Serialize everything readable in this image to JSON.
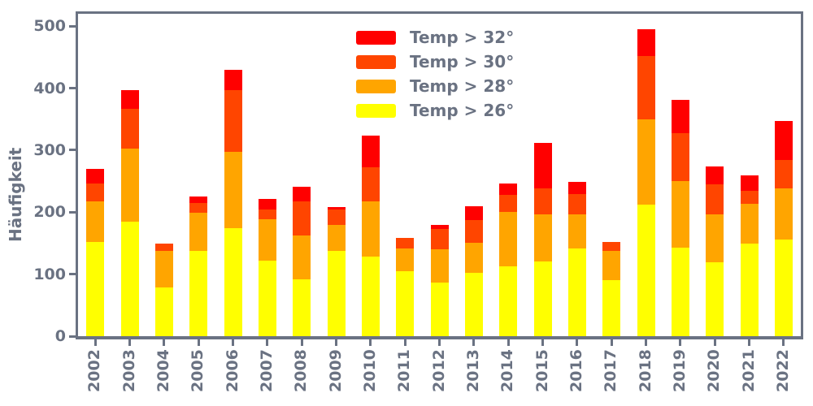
{
  "chart_data": {
    "type": "bar",
    "stacked": true,
    "title": "",
    "xlabel": "",
    "ylabel": "Häufigkeit",
    "categories": [
      "2002",
      "2003",
      "2004",
      "2005",
      "2006",
      "2007",
      "2008",
      "2009",
      "2010",
      "2011",
      "2012",
      "2013",
      "2014",
      "2015",
      "2016",
      "2017",
      "2018",
      "2019",
      "2020",
      "2021",
      "2022"
    ],
    "series": [
      {
        "name": "Temp > 26°",
        "color": "#ffff00",
        "values": [
          152,
          185,
          78,
          137,
          174,
          122,
          92,
          137,
          128,
          105,
          86,
          102,
          113,
          120,
          141,
          90,
          212,
          143,
          119,
          149,
          156
        ]
      },
      {
        "name": "Temp > 28°",
        "color": "#ffa500",
        "values": [
          66,
          117,
          60,
          62,
          123,
          66,
          70,
          43,
          90,
          37,
          54,
          49,
          87,
          76,
          55,
          48,
          138,
          107,
          77,
          64,
          82
        ]
      },
      {
        "name": "Temp > 30°",
        "color": "#ff4500",
        "values": [
          28,
          65,
          12,
          16,
          100,
          16,
          56,
          24,
          54,
          16,
          33,
          37,
          28,
          43,
          33,
          14,
          102,
          78,
          49,
          21,
          46
        ]
      },
      {
        "name": "Temp > 32°",
        "color": "#ff0000",
        "values": [
          24,
          30,
          0,
          10,
          33,
          17,
          23,
          4,
          52,
          0,
          7,
          22,
          18,
          73,
          20,
          0,
          43,
          53,
          29,
          26,
          63
        ]
      }
    ],
    "totals": [
      270,
      397,
      150,
      225,
      430,
      221,
      241,
      208,
      324,
      158,
      180,
      210,
      246,
      312,
      249,
      152,
      495,
      381,
      274,
      260,
      347
    ],
    "y_ticks": [
      0,
      100,
      200,
      300,
      400,
      500
    ],
    "ylim": [
      0,
      520
    ],
    "grid": false,
    "legend_position": "upper-center-inside"
  },
  "legend": {
    "items": [
      {
        "label": "Temp > 32°",
        "color": "#ff0000"
      },
      {
        "label": "Temp > 30°",
        "color": "#ff4500"
      },
      {
        "label": "Temp > 28°",
        "color": "#ffa500"
      },
      {
        "label": "Temp > 26°",
        "color": "#ffff00"
      }
    ]
  },
  "style": {
    "axis_color": "#6a7282",
    "background": "#ffffff"
  }
}
